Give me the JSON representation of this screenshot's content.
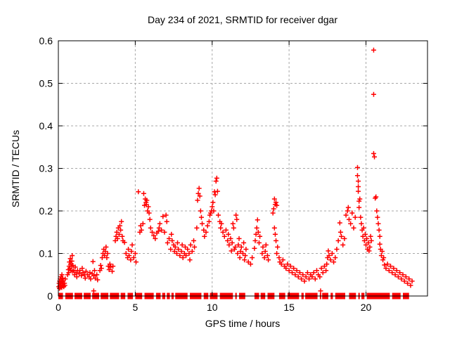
{
  "title": "Day 234 of 2021, SRMTID for receiver dgar",
  "colors": {
    "marker": "#ff0000",
    "grid": "#a8a8a8",
    "axis": "#000000",
    "background": "#ffffff",
    "text": "#000000"
  },
  "chart_data": {
    "type": "scatter",
    "title": "Day 234 of 2021, SRMTID for receiver dgar",
    "xlabel": "GPS time / hours",
    "ylabel": "SRMTID / TECUs",
    "xlim": [
      0,
      24
    ],
    "ylim": [
      0,
      0.6
    ],
    "xticks": [
      0,
      5,
      10,
      15,
      20
    ],
    "xtick_labels": [
      "0",
      "5",
      "10",
      "15",
      "20"
    ],
    "yticks": [
      0,
      0.1,
      0.2,
      0.3,
      0.4,
      0.5,
      0.6
    ],
    "ytick_labels": [
      "0",
      "0.1",
      "0.2",
      "0.3",
      "0.4",
      "0.5",
      "0.6"
    ],
    "grid": true,
    "legend": "none",
    "marker": "plus",
    "marker_color": "#ff0000",
    "zero_band_value": 0.0,
    "zero_band_segments": [
      [
        0.0,
        0.3
      ],
      [
        0.45,
        0.95
      ],
      [
        1.05,
        1.55
      ],
      [
        1.65,
        2.1
      ],
      [
        2.2,
        2.65
      ],
      [
        2.75,
        3.25
      ],
      [
        3.35,
        3.95
      ],
      [
        4.05,
        4.35
      ],
      [
        4.5,
        4.85
      ],
      [
        5.0,
        5.45
      ],
      [
        5.6,
        6.2
      ],
      [
        6.35,
        6.65
      ],
      [
        6.75,
        6.95
      ],
      [
        7.05,
        7.25
      ],
      [
        7.35,
        7.5
      ],
      [
        7.6,
        8.4
      ],
      [
        8.55,
        9.3
      ],
      [
        9.45,
        9.75
      ],
      [
        9.85,
        10.35
      ],
      [
        10.5,
        11.35
      ],
      [
        11.5,
        11.6
      ],
      [
        11.75,
        12.15
      ],
      [
        12.75,
        13.05
      ],
      [
        13.15,
        13.45
      ],
      [
        13.6,
        14.05
      ],
      [
        14.35,
        14.75
      ],
      [
        14.9,
        15.65
      ],
      [
        15.8,
        15.95
      ],
      [
        16.05,
        16.85
      ],
      [
        17.0,
        17.08
      ],
      [
        17.15,
        17.55
      ],
      [
        17.7,
        17.85
      ],
      [
        18.0,
        18.65
      ],
      [
        18.9,
        19.35
      ],
      [
        19.5,
        19.6
      ],
      [
        19.7,
        19.9
      ],
      [
        20.05,
        21.55
      ],
      [
        21.7,
        22.25
      ],
      [
        22.4,
        22.8
      ]
    ],
    "points": [
      [
        0.03,
        0.022
      ],
      [
        0.05,
        0.03
      ],
      [
        0.07,
        0.018
      ],
      [
        0.08,
        0.035
      ],
      [
        0.1,
        0.025
      ],
      [
        0.12,
        0.04
      ],
      [
        0.13,
        0.02
      ],
      [
        0.15,
        0.03
      ],
      [
        0.17,
        0.045
      ],
      [
        0.18,
        0.025
      ],
      [
        0.2,
        0.035
      ],
      [
        0.22,
        0.02
      ],
      [
        0.23,
        0.05
      ],
      [
        0.25,
        0.033
      ],
      [
        0.27,
        0.024
      ],
      [
        0.28,
        0.042
      ],
      [
        0.3,
        0.028
      ],
      [
        0.32,
        0.036
      ],
      [
        0.35,
        0.022
      ],
      [
        0.4,
        0.03
      ],
      [
        0.42,
        0.025
      ],
      [
        0.45,
        0.04
      ],
      [
        0.6,
        0.05
      ],
      [
        0.65,
        0.062
      ],
      [
        0.68,
        0.055
      ],
      [
        0.7,
        0.07
      ],
      [
        0.72,
        0.08
      ],
      [
        0.75,
        0.065
      ],
      [
        0.78,
        0.088
      ],
      [
        0.8,
        0.075
      ],
      [
        0.82,
        0.06
      ],
      [
        0.85,
        0.07
      ],
      [
        0.88,
        0.082
      ],
      [
        0.9,
        0.095
      ],
      [
        0.92,
        0.058
      ],
      [
        0.95,
        0.072
      ],
      [
        1.0,
        0.06
      ],
      [
        1.05,
        0.05
      ],
      [
        1.1,
        0.068
      ],
      [
        1.15,
        0.055
      ],
      [
        1.2,
        0.045
      ],
      [
        1.25,
        0.06
      ],
      [
        1.35,
        0.052
      ],
      [
        1.4,
        0.06
      ],
      [
        1.5,
        0.048
      ],
      [
        1.55,
        0.065
      ],
      [
        1.6,
        0.055
      ],
      [
        1.7,
        0.05
      ],
      [
        1.75,
        0.042
      ],
      [
        1.8,
        0.058
      ],
      [
        1.9,
        0.05
      ],
      [
        2.0,
        0.045
      ],
      [
        2.05,
        0.055
      ],
      [
        2.1,
        0.04
      ],
      [
        2.2,
        0.052
      ],
      [
        2.25,
        0.081
      ],
      [
        2.3,
        0.048
      ],
      [
        2.3,
        0.012
      ],
      [
        2.35,
        0.06
      ],
      [
        2.4,
        0.042
      ],
      [
        2.5,
        0.05
      ],
      [
        2.55,
        0.038
      ],
      [
        2.7,
        0.06
      ],
      [
        2.75,
        0.072
      ],
      [
        2.8,
        0.065
      ],
      [
        2.85,
        0.09
      ],
      [
        2.9,
        0.1
      ],
      [
        2.95,
        0.11
      ],
      [
        3.0,
        0.095
      ],
      [
        3.05,
        0.105
      ],
      [
        3.1,
        0.115
      ],
      [
        3.15,
        0.09
      ],
      [
        3.2,
        0.1
      ],
      [
        3.25,
        0.07
      ],
      [
        3.3,
        0.062
      ],
      [
        3.35,
        0.075
      ],
      [
        3.4,
        0.068
      ],
      [
        3.5,
        0.058
      ],
      [
        3.55,
        0.07
      ],
      [
        3.7,
        0.13
      ],
      [
        3.75,
        0.14
      ],
      [
        3.8,
        0.15
      ],
      [
        3.85,
        0.135
      ],
      [
        3.9,
        0.16
      ],
      [
        3.95,
        0.145
      ],
      [
        4.0,
        0.165
      ],
      [
        4.05,
        0.155
      ],
      [
        4.1,
        0.175
      ],
      [
        4.15,
        0.14
      ],
      [
        4.2,
        0.13
      ],
      [
        4.3,
        0.126
      ],
      [
        4.4,
        0.1
      ],
      [
        4.5,
        0.09
      ],
      [
        4.55,
        0.11
      ],
      [
        4.6,
        0.095
      ],
      [
        4.7,
        0.085
      ],
      [
        4.75,
        0.105
      ],
      [
        4.8,
        0.12
      ],
      [
        4.9,
        0.09
      ],
      [
        5.0,
        0.1
      ],
      [
        5.05,
        0.08
      ],
      [
        5.2,
        0.245
      ],
      [
        5.3,
        0.15
      ],
      [
        5.35,
        0.165
      ],
      [
        5.4,
        0.155
      ],
      [
        5.5,
        0.17
      ],
      [
        5.55,
        0.241
      ],
      [
        5.6,
        0.213
      ],
      [
        5.65,
        0.228
      ],
      [
        5.7,
        0.22
      ],
      [
        5.72,
        0.215
      ],
      [
        5.75,
        0.225
      ],
      [
        5.8,
        0.2
      ],
      [
        5.85,
        0.21
      ],
      [
        5.9,
        0.195
      ],
      [
        5.95,
        0.18
      ],
      [
        6.0,
        0.16
      ],
      [
        6.1,
        0.15
      ],
      [
        6.2,
        0.142
      ],
      [
        6.3,
        0.135
      ],
      [
        6.4,
        0.148
      ],
      [
        6.5,
        0.152
      ],
      [
        6.55,
        0.16
      ],
      [
        6.6,
        0.17
      ],
      [
        6.7,
        0.155
      ],
      [
        6.8,
        0.187
      ],
      [
        6.9,
        0.15
      ],
      [
        7.0,
        0.19
      ],
      [
        7.05,
        0.175
      ],
      [
        7.1,
        0.125
      ],
      [
        7.2,
        0.135
      ],
      [
        7.3,
        0.11
      ],
      [
        7.35,
        0.145
      ],
      [
        7.4,
        0.13
      ],
      [
        7.5,
        0.12
      ],
      [
        7.55,
        0.105
      ],
      [
        7.6,
        0.115
      ],
      [
        7.7,
        0.1
      ],
      [
        7.75,
        0.125
      ],
      [
        7.8,
        0.11
      ],
      [
        7.9,
        0.095
      ],
      [
        8.0,
        0.105
      ],
      [
        8.05,
        0.12
      ],
      [
        8.1,
        0.09
      ],
      [
        8.2,
        0.1
      ],
      [
        8.25,
        0.115
      ],
      [
        8.3,
        0.095
      ],
      [
        8.4,
        0.11
      ],
      [
        8.5,
        0.1
      ],
      [
        8.55,
        0.085
      ],
      [
        8.6,
        0.12
      ],
      [
        8.7,
        0.105
      ],
      [
        8.8,
        0.13
      ],
      [
        8.85,
        0.115
      ],
      [
        9.0,
        0.16
      ],
      [
        9.05,
        0.225
      ],
      [
        9.1,
        0.241
      ],
      [
        9.15,
        0.253
      ],
      [
        9.2,
        0.235
      ],
      [
        9.25,
        0.2
      ],
      [
        9.3,
        0.185
      ],
      [
        9.35,
        0.17
      ],
      [
        9.45,
        0.155
      ],
      [
        9.5,
        0.14
      ],
      [
        9.6,
        0.15
      ],
      [
        9.7,
        0.165
      ],
      [
        9.8,
        0.175
      ],
      [
        9.85,
        0.19
      ],
      [
        9.9,
        0.195
      ],
      [
        9.95,
        0.2
      ],
      [
        10.0,
        0.21
      ],
      [
        10.05,
        0.22
      ],
      [
        10.1,
        0.2
      ],
      [
        10.15,
        0.245
      ],
      [
        10.2,
        0.238
      ],
      [
        10.25,
        0.27
      ],
      [
        10.3,
        0.277
      ],
      [
        10.35,
        0.246
      ],
      [
        10.4,
        0.19
      ],
      [
        10.5,
        0.175
      ],
      [
        10.55,
        0.16
      ],
      [
        10.6,
        0.17
      ],
      [
        10.7,
        0.15
      ],
      [
        10.8,
        0.14
      ],
      [
        10.9,
        0.155
      ],
      [
        11.0,
        0.13
      ],
      [
        11.05,
        0.145
      ],
      [
        11.1,
        0.12
      ],
      [
        11.2,
        0.135
      ],
      [
        11.25,
        0.106
      ],
      [
        11.3,
        0.125
      ],
      [
        11.35,
        0.17
      ],
      [
        11.4,
        0.16
      ],
      [
        11.45,
        0.11
      ],
      [
        11.5,
        0.115
      ],
      [
        11.55,
        0.19
      ],
      [
        11.6,
        0.18
      ],
      [
        11.65,
        0.1
      ],
      [
        11.7,
        0.12
      ],
      [
        11.75,
        0.135
      ],
      [
        11.8,
        0.09
      ],
      [
        11.85,
        0.105
      ],
      [
        11.9,
        0.115
      ],
      [
        12.0,
        0.1
      ],
      [
        12.05,
        0.125
      ],
      [
        12.1,
        0.085
      ],
      [
        12.15,
        0.095
      ],
      [
        12.2,
        0.11
      ],
      [
        12.35,
        0.08
      ],
      [
        12.5,
        0.075
      ],
      [
        12.6,
        0.09
      ],
      [
        12.75,
        0.112
      ],
      [
        12.8,
        0.13
      ],
      [
        12.85,
        0.145
      ],
      [
        12.9,
        0.16
      ],
      [
        12.95,
        0.179
      ],
      [
        13.0,
        0.15
      ],
      [
        13.05,
        0.125
      ],
      [
        13.1,
        0.14
      ],
      [
        13.25,
        0.1
      ],
      [
        13.3,
        0.115
      ],
      [
        13.4,
        0.09
      ],
      [
        13.45,
        0.105
      ],
      [
        13.5,
        0.12
      ],
      [
        13.6,
        0.095
      ],
      [
        13.65,
        0.085
      ],
      [
        13.95,
        0.195
      ],
      [
        14.0,
        0.205
      ],
      [
        14.05,
        0.228
      ],
      [
        14.1,
        0.215
      ],
      [
        14.15,
        0.22
      ],
      [
        14.2,
        0.213
      ],
      [
        14.05,
        0.16
      ],
      [
        14.1,
        0.145
      ],
      [
        14.15,
        0.13
      ],
      [
        14.2,
        0.1
      ],
      [
        14.25,
        0.115
      ],
      [
        14.35,
        0.09
      ],
      [
        14.4,
        0.08
      ],
      [
        14.5,
        0.075
      ],
      [
        14.6,
        0.085
      ],
      [
        14.7,
        0.07
      ],
      [
        14.8,
        0.065
      ],
      [
        14.9,
        0.075
      ],
      [
        15.0,
        0.06
      ],
      [
        15.1,
        0.07
      ],
      [
        15.2,
        0.055
      ],
      [
        15.3,
        0.065
      ],
      [
        15.4,
        0.05
      ],
      [
        15.5,
        0.06
      ],
      [
        15.6,
        0.045
      ],
      [
        15.7,
        0.055
      ],
      [
        15.8,
        0.04
      ],
      [
        15.9,
        0.05
      ],
      [
        16.0,
        0.035
      ],
      [
        16.1,
        0.045
      ],
      [
        16.2,
        0.055
      ],
      [
        16.3,
        0.04
      ],
      [
        16.4,
        0.05
      ],
      [
        16.5,
        0.045
      ],
      [
        16.6,
        0.055
      ],
      [
        16.7,
        0.04
      ],
      [
        16.8,
        0.06
      ],
      [
        16.9,
        0.05
      ],
      [
        17.0,
        0.045
      ],
      [
        17.05,
        0.012
      ],
      [
        17.1,
        0.065
      ],
      [
        17.2,
        0.055
      ],
      [
        17.3,
        0.07
      ],
      [
        17.4,
        0.06
      ],
      [
        17.45,
        0.075
      ],
      [
        17.5,
        0.09
      ],
      [
        17.55,
        0.106
      ],
      [
        17.6,
        0.095
      ],
      [
        17.7,
        0.085
      ],
      [
        17.8,
        0.1
      ],
      [
        17.9,
        0.08
      ],
      [
        18.0,
        0.09
      ],
      [
        18.1,
        0.11
      ],
      [
        18.2,
        0.13
      ],
      [
        18.3,
        0.172
      ],
      [
        18.35,
        0.15
      ],
      [
        18.4,
        0.14
      ],
      [
        18.5,
        0.12
      ],
      [
        18.6,
        0.135
      ],
      [
        18.7,
        0.19
      ],
      [
        18.8,
        0.2
      ],
      [
        18.85,
        0.208
      ],
      [
        18.9,
        0.18
      ],
      [
        19.0,
        0.17
      ],
      [
        19.1,
        0.195
      ],
      [
        19.2,
        0.16
      ],
      [
        19.3,
        0.185
      ],
      [
        19.45,
        0.302
      ],
      [
        19.45,
        0.283
      ],
      [
        19.5,
        0.27
      ],
      [
        19.5,
        0.257
      ],
      [
        19.5,
        0.246
      ],
      [
        19.55,
        0.223
      ],
      [
        19.55,
        0.208
      ],
      [
        19.6,
        0.228
      ],
      [
        19.65,
        0.185
      ],
      [
        19.7,
        0.17
      ],
      [
        19.75,
        0.155
      ],
      [
        19.8,
        0.14
      ],
      [
        19.85,
        0.16
      ],
      [
        19.9,
        0.13
      ],
      [
        19.95,
        0.145
      ],
      [
        20.0,
        0.12
      ],
      [
        20.05,
        0.135
      ],
      [
        20.1,
        0.11
      ],
      [
        20.15,
        0.125
      ],
      [
        20.2,
        0.106
      ],
      [
        20.25,
        0.115
      ],
      [
        20.3,
        0.14
      ],
      [
        20.35,
        0.13
      ],
      [
        20.5,
        0.578
      ],
      [
        20.5,
        0.474
      ],
      [
        20.5,
        0.335
      ],
      [
        20.55,
        0.327
      ],
      [
        20.6,
        0.23
      ],
      [
        20.65,
        0.233
      ],
      [
        20.7,
        0.2
      ],
      [
        20.75,
        0.185
      ],
      [
        20.8,
        0.17
      ],
      [
        20.85,
        0.155
      ],
      [
        20.9,
        0.14
      ],
      [
        20.9,
        0.122
      ],
      [
        20.95,
        0.11
      ],
      [
        21.0,
        0.095
      ],
      [
        21.05,
        0.105
      ],
      [
        21.1,
        0.085
      ],
      [
        21.15,
        0.09
      ],
      [
        21.2,
        0.073
      ],
      [
        21.3,
        0.065
      ],
      [
        21.4,
        0.075
      ],
      [
        21.5,
        0.06
      ],
      [
        21.6,
        0.07
      ],
      [
        21.7,
        0.055
      ],
      [
        21.8,
        0.065
      ],
      [
        21.9,
        0.05
      ],
      [
        22.0,
        0.06
      ],
      [
        22.1,
        0.045
      ],
      [
        22.2,
        0.055
      ],
      [
        22.3,
        0.04
      ],
      [
        22.4,
        0.05
      ],
      [
        22.5,
        0.035
      ],
      [
        22.6,
        0.045
      ],
      [
        22.7,
        0.03
      ],
      [
        22.8,
        0.04
      ],
      [
        22.9,
        0.025
      ],
      [
        23.0,
        0.035
      ]
    ]
  }
}
